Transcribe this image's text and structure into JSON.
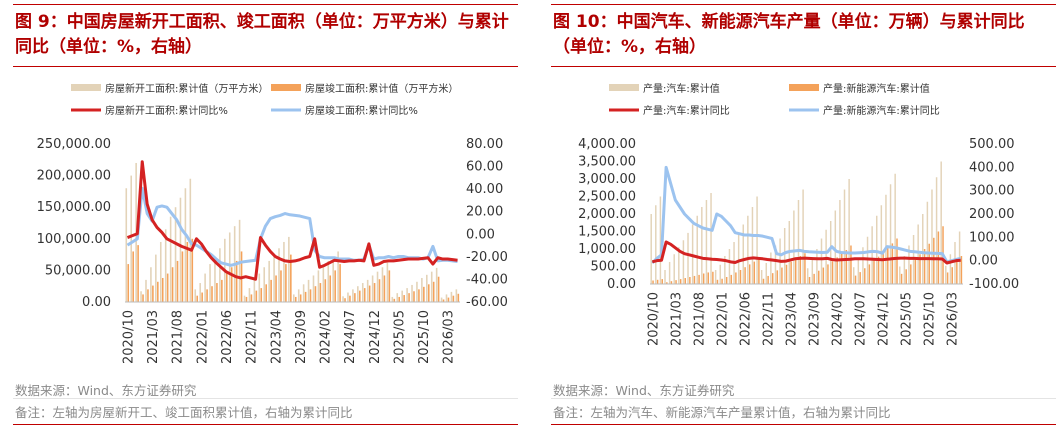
{
  "charts": [
    {
      "id": "left",
      "title": "图 9：中国房屋新开工面积、竣工面积（单位：万平方米）与累计同比（单位：%，右轴）",
      "source": "数据来源：Wind、东方证券研究",
      "note": "备注：左轴为房屋新开工、竣工面积累计值，右轴为累计同比",
      "colors": {
        "bar1": "#e3d3b8",
        "bar2": "#f4a25a",
        "line1": "#d42222",
        "line2": "#9cc3ef"
      },
      "chart_data": {
        "type": "bar",
        "legend_position": "top",
        "grid": false,
        "x_ticks": [
          "2020/10",
          "2021/03",
          "2021/08",
          "2022/01",
          "2022/06",
          "2022/11",
          "2023/04",
          "2023/09",
          "2024/02",
          "2024/07",
          "2024/12",
          "2025/05",
          "2025/10",
          "2026/03"
        ],
        "x_range": [
          "2020/10",
          "2026/06"
        ],
        "y_left_ticks": [
          "250,000.00",
          "200,000.00",
          "150,000.00",
          "100,000.00",
          "50,000.00",
          "0.00"
        ],
        "y_left_range": [
          0,
          250000
        ],
        "y_right_ticks": [
          "80.00",
          "60.00",
          "40.00",
          "20.00",
          "0.00",
          "-20.00",
          "-40.00",
          "-60.00"
        ],
        "y_right_range": [
          -60,
          80
        ],
        "series": [
          {
            "name": "房屋新开工面积:累计值（万平方米）",
            "type": "bar",
            "axis": "left",
            "values": [
              180000,
              200000,
              220000,
              17000,
              35000,
              55000,
              75000,
              95000,
              115000,
              135000,
              150000,
              165000,
              180000,
              195000,
              20000,
              30000,
              45000,
              60000,
              72000,
              85000,
              100000,
              110000,
              120000,
              130000,
              10000,
              22000,
              35000,
              45000,
              55000,
              65000,
              75000,
              85000,
              95000,
              103000,
              12000,
              20000,
              28000,
              35000,
              42000,
              50000,
              58000,
              65000,
              72000,
              80000,
              9000,
              15000,
              20000,
              25000,
              30000,
              35000,
              42000,
              48000,
              55000,
              62000,
              8000,
              14000,
              18000,
              22000,
              27000,
              32000,
              38000,
              43000,
              48000,
              54000,
              7000,
              12000,
              16000,
              20000
            ]
          },
          {
            "name": "房屋竣工面积:累计值（万平方米）",
            "type": "bar",
            "axis": "left",
            "values": [
              60000,
              80000,
              90000,
              12000,
              20000,
              26000,
              32000,
              38000,
              45000,
              55000,
              65000,
              80000,
              95000,
              100000,
              10000,
              15000,
              20000,
              25000,
              30000,
              35000,
              45000,
              55000,
              65000,
              80000,
              8000,
              12000,
              18000,
              22000,
              28000,
              35000,
              42000,
              50000,
              60000,
              75000,
              8000,
              12000,
              16000,
              20000,
              25000,
              30000,
              36000,
              42000,
              50000,
              60000,
              6000,
              10000,
              14000,
              18000,
              22000,
              26000,
              30000,
              36000,
              42000,
              50000,
              5000,
              8000,
              11000,
              14000,
              17000,
              20000,
              24000,
              28000,
              32000,
              40000,
              4000,
              7000,
              10000,
              13000
            ]
          },
          {
            "name": "房屋新开工面积:累计同比%",
            "type": "line",
            "axis": "left",
            "values": [
              102000,
              105000,
              108000,
              222000,
              155000,
              130000,
              118000,
              110000,
              100000,
              96000,
              92000,
              88000,
              85000,
              82000,
              100000,
              92000,
              80000,
              70000,
              62000,
              55000,
              48000,
              44000,
              40000,
              38000,
              40000,
              38000,
              36000,
              102000,
              90000,
              80000,
              72000,
              68000,
              65000,
              64000,
              65000,
              67000,
              70000,
              72000,
              100000,
              55000,
              58000,
              62000,
              66000,
              65000,
              64000,
              65000,
              65000,
              66000,
              65000,
              92000,
              58000,
              60000,
              64000,
              65000,
              65000,
              66000,
              67000,
              68000,
              68000,
              68000,
              69000,
              70000,
              60000,
              70000,
              68000,
              68000,
              67000,
              66000
            ]
          },
          {
            "name": "房屋竣工面积:累计同比%",
            "type": "line",
            "axis": "left",
            "values": [
              90000,
              95000,
              100000,
              180000,
              140000,
              128000,
              150000,
              152000,
              150000,
              140000,
              130000,
              115000,
              105000,
              92000,
              90000,
              85000,
              80000,
              75000,
              68000,
              62000,
              60000,
              58000,
              60000,
              63000,
              64000,
              65000,
              66000,
              100000,
              120000,
              132000,
              135000,
              137000,
              140000,
              138000,
              137000,
              136000,
              134000,
              132000,
              82000,
              72000,
              70000,
              70000,
              70000,
              68000,
              68000,
              68000,
              66000,
              66000,
              68000,
              90000,
              68000,
              70000,
              70000,
              72000,
              70000,
              72000,
              72000,
              70000,
              70000,
              70000,
              68000,
              70000,
              88000,
              65000,
              66000,
              66000,
              65000,
              64000
            ]
          }
        ]
      }
    },
    {
      "id": "right",
      "title": "图 10：中国汽车、新能源汽车产量（单位：万辆）与累计同比（单位：%，右轴）",
      "source": "数据来源：Wind、东方证券研究",
      "note": "备注：左轴为汽车、新能源汽车产量累计值，右轴为累计同比",
      "colors": {
        "bar1": "#e3d3b8",
        "bar2": "#f4a25a",
        "line1": "#d42222",
        "line2": "#9cc3ef"
      },
      "chart_data": {
        "type": "bar",
        "legend_position": "top",
        "grid": false,
        "x_ticks": [
          "2020/10",
          "2021/03",
          "2021/08",
          "2022/01",
          "2022/06",
          "2022/11",
          "2023/04",
          "2023/09",
          "2024/02",
          "2024/07",
          "2024/12",
          "2025/05",
          "2025/10",
          "2026/03"
        ],
        "x_range": [
          "2020/10",
          "2026/06"
        ],
        "y_left_ticks": [
          "4,000.00",
          "3,500.00",
          "3,000.00",
          "2,500.00",
          "2,000.00",
          "1,500.00",
          "1,000.00",
          "500.00",
          "0.00"
        ],
        "y_left_range": [
          0,
          4000
        ],
        "y_right_ticks": [
          "500.00",
          "400.00",
          "300.00",
          "200.00",
          "100.00",
          "0.00",
          "-100.00"
        ],
        "y_right_range": [
          -100,
          500
        ],
        "series": [
          {
            "name": "产量:汽车:累计值",
            "type": "bar",
            "axis": "left",
            "values": [
              2000,
              2250,
              2500,
              400,
              630,
              850,
              1050,
              1250,
              1460,
              1700,
              1950,
              2200,
              2400,
              2600,
              400,
              550,
              800,
              1000,
              1200,
              1450,
              1700,
              1950,
              2200,
              2500,
              400,
              600,
              900,
              1100,
              1300,
              1600,
              1800,
              2100,
              2400,
              2700,
              450,
              700,
              1000,
              1300,
              1550,
              1800,
              2100,
              2400,
              2700,
              3000,
              480,
              750,
              1050,
              1350,
              1650,
              1950,
              2250,
              2550,
              2850,
              3150,
              500,
              800,
              1100,
              1400,
              1700,
              2000,
              2350,
              2700,
              3050,
              3500,
              520,
              850,
              1200,
              1500
            ]
          },
          {
            "name": "产量:新能源汽车:累计值",
            "type": "bar",
            "axis": "left",
            "values": [
              100,
              120,
              140,
              50,
              80,
              110,
              140,
              170,
              200,
              230,
              260,
              300,
              330,
              350,
              120,
              150,
              200,
              260,
              330,
              400,
              480,
              560,
              640,
              720,
              150,
              230,
              310,
              390,
              470,
              550,
              640,
              720,
              800,
              880,
              200,
              290,
              380,
              470,
              560,
              650,
              760,
              860,
              970,
              1100,
              240,
              340,
              450,
              560,
              670,
              780,
              900,
              1030,
              1160,
              1300,
              290,
              420,
              560,
              700,
              850,
              1000,
              1150,
              1320,
              1500,
              1650,
              330,
              480,
              650,
              800
            ]
          },
          {
            "name": "产量:汽车:累计同比",
            "type": "line",
            "axis": "right",
            "values": [
              -5,
              0,
              2,
              80,
              70,
              55,
              40,
              30,
              25,
              20,
              15,
              10,
              8,
              6,
              5,
              3,
              0,
              -5,
              -8,
              0,
              5,
              10,
              12,
              10,
              8,
              5,
              3,
              0,
              -3,
              -2,
              3,
              8,
              10,
              11,
              10,
              9,
              8,
              8,
              10,
              5,
              3,
              4,
              5,
              6,
              8,
              8,
              8,
              7,
              6,
              5,
              4,
              6,
              8,
              10,
              11,
              11,
              10,
              10,
              9,
              9,
              9,
              8,
              8,
              7,
              -10,
              -5,
              0,
              2
            ]
          },
          {
            "name": "产量:新能源汽车:累计同比",
            "type": "line",
            "axis": "right",
            "values": [
              -10,
              10,
              25,
              400,
              330,
              260,
              230,
              200,
              180,
              160,
              150,
              140,
              135,
              130,
              200,
              190,
              170,
              150,
              120,
              115,
              110,
              110,
              108,
              108,
              105,
              100,
              95,
              30,
              25,
              35,
              40,
              42,
              44,
              40,
              38,
              37,
              36,
              35,
              36,
              60,
              40,
              35,
              34,
              33,
              33,
              34,
              35,
              38,
              40,
              38,
              32,
              60,
              58,
              55,
              50,
              45,
              40,
              38,
              36,
              34,
              33,
              32,
              31,
              30,
              -5,
              0,
              5,
              10
            ]
          }
        ]
      }
    }
  ]
}
